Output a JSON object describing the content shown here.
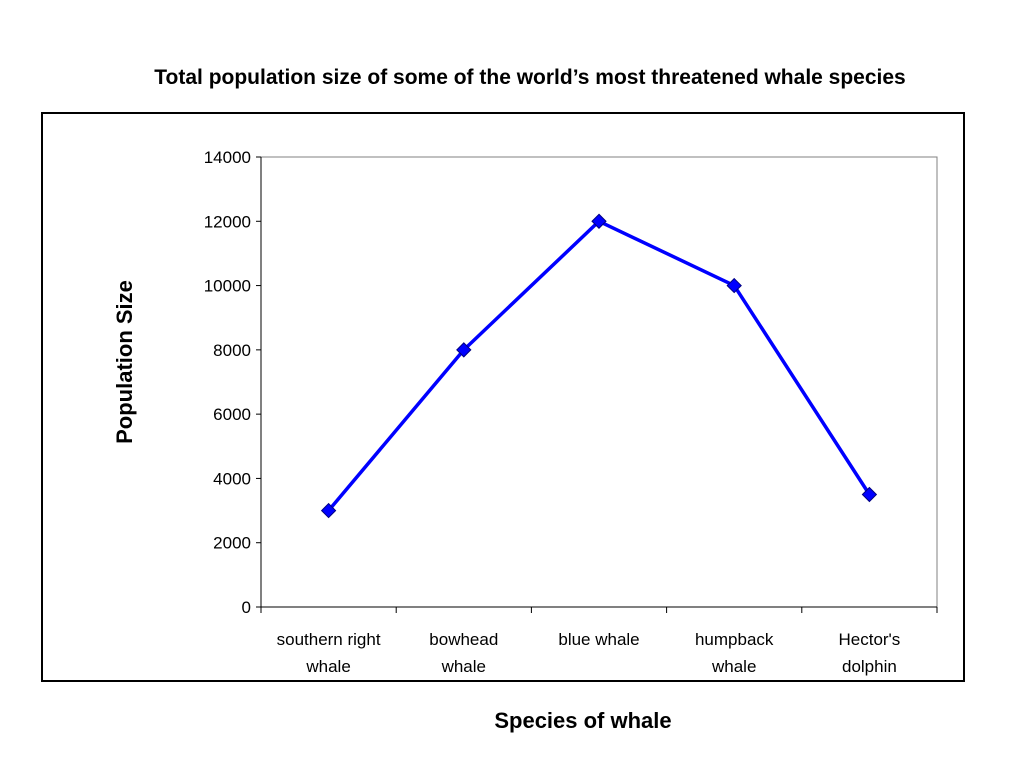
{
  "chart_data": {
    "type": "line",
    "title": "Total population size of some of the world’s most threatened whale species",
    "xlabel": "Species of whale",
    "ylabel": "Population Size",
    "categories": [
      [
        "southern right",
        "whale"
      ],
      [
        "bowhead",
        "whale"
      ],
      [
        "blue whale"
      ],
      [
        "humpback",
        "whale"
      ],
      [
        "Hector's",
        "dolphin"
      ]
    ],
    "series": [
      {
        "values": [
          3000,
          8000,
          12000,
          10000,
          3500
        ],
        "color": "#0000FF",
        "marker": "diamond"
      }
    ],
    "ylim": [
      0,
      14000
    ],
    "yticks": [
      0,
      2000,
      4000,
      6000,
      8000,
      10000,
      12000,
      14000
    ],
    "grid": false,
    "legend": "none"
  }
}
